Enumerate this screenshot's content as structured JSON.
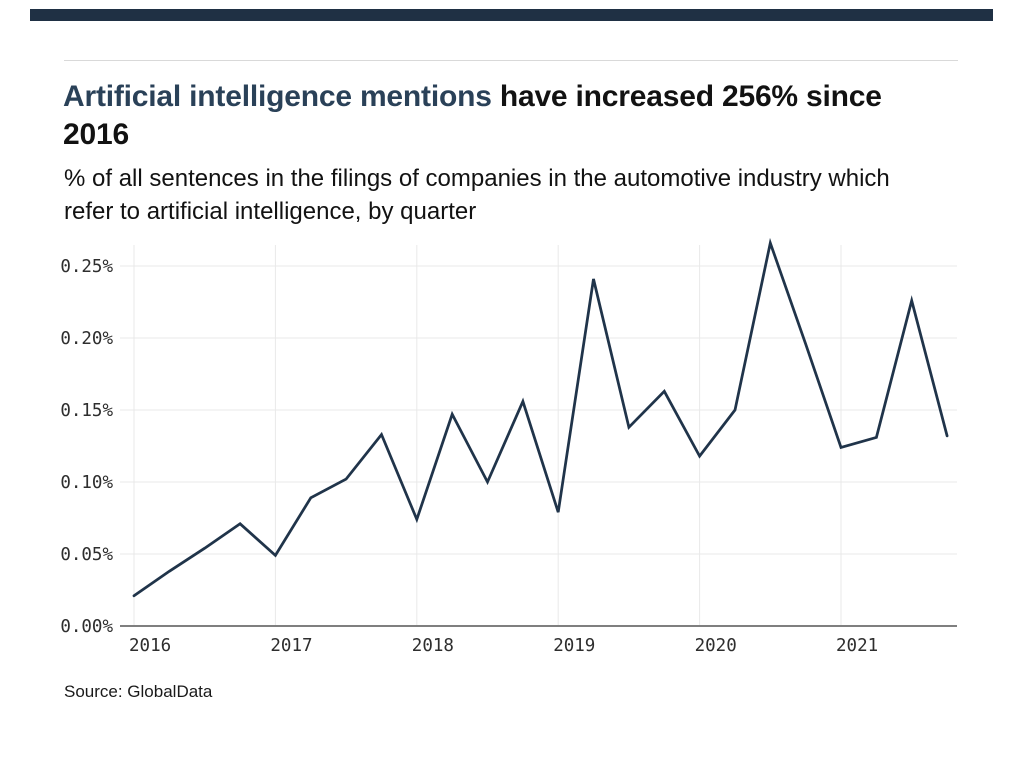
{
  "header": {
    "title_highlight": "Artificial intelligence mentions",
    "title_rest": " have increased 256% since 2016",
    "subtitle": "% of all sentences in the filings of companies in the automotive industry which refer to artificial intelligence, by quarter"
  },
  "source": {
    "label": "Source: GlobalData"
  },
  "colors": {
    "accent_navy": "#2a4158",
    "line_navy": "#20344a",
    "top_bar": "#1f3044",
    "text_black": "#121212",
    "grid": "#e9e9e9",
    "axis": "#7f7f7f",
    "tick_text": "#2e2e2e",
    "rule": "#d9d9d9"
  },
  "chart_data": {
    "type": "line",
    "title": "Artificial intelligence mentions have increased 256% since 2016",
    "subtitle": "% of all sentences in the filings of companies in the automotive industry which refer to artificial intelligence, by quarter",
    "xlabel": "",
    "ylabel": "",
    "unit": "% of all sentences",
    "x": [
      "2016 Q1",
      "2016 Q2",
      "2016 Q3",
      "2016 Q4",
      "2017 Q1",
      "2017 Q2",
      "2017 Q3",
      "2017 Q4",
      "2018 Q1",
      "2018 Q2",
      "2018 Q3",
      "2018 Q4",
      "2019 Q1",
      "2019 Q2",
      "2019 Q3",
      "2019 Q4",
      "2020 Q1",
      "2020 Q2",
      "2020 Q3",
      "2020 Q4",
      "2021 Q1",
      "2021 Q2",
      "2021 Q3",
      "2021 Q4"
    ],
    "values": [
      0.021,
      0.038,
      0.054,
      0.071,
      0.049,
      0.089,
      0.102,
      0.133,
      0.074,
      0.147,
      0.1,
      0.156,
      0.079,
      0.241,
      0.138,
      0.163,
      0.118,
      0.15,
      0.266,
      0.196,
      0.124,
      0.131,
      0.226,
      0.132
    ],
    "x_tick_labels": [
      "2016",
      "2017",
      "2018",
      "2019",
      "2020",
      "2021"
    ],
    "y_tick_labels": [
      "0.00%",
      "0.05%",
      "0.10%",
      "0.15%",
      "0.20%",
      "0.25%"
    ],
    "y_tick_values": [
      0,
      0.05,
      0.1,
      0.15,
      0.2,
      0.25
    ],
    "ylim": [
      0,
      0.27
    ],
    "grid": true,
    "legend_position": "none"
  }
}
